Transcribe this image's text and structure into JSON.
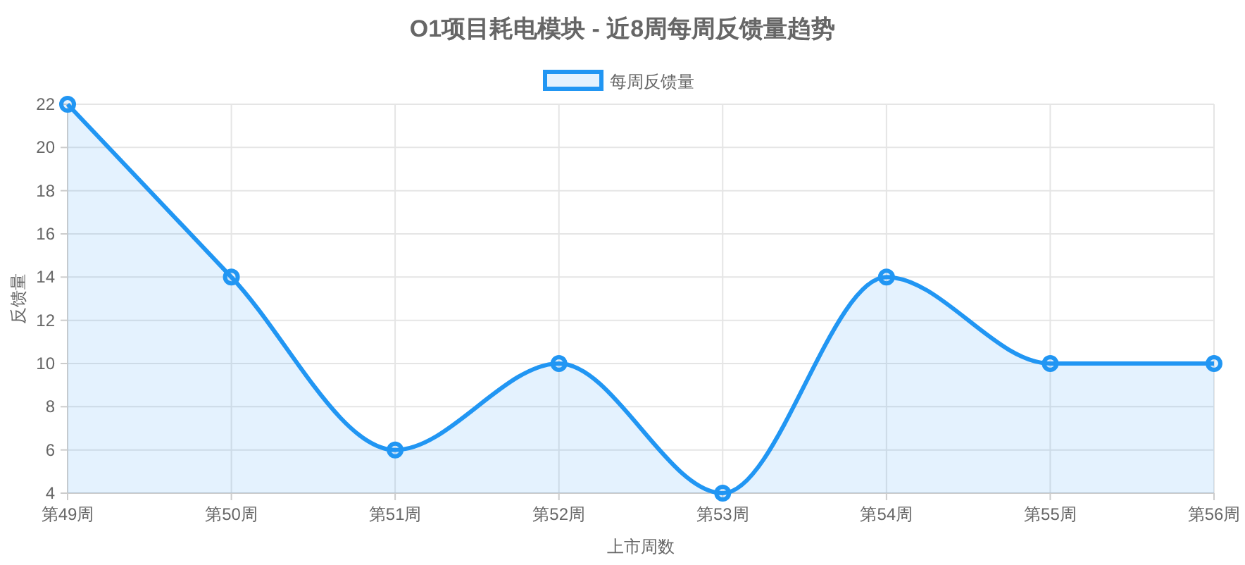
{
  "chart_data": {
    "type": "area",
    "title": "O1项目耗电模块 - 近8周每周反馈量趋势",
    "xlabel": "上市周数",
    "ylabel": "反馈量",
    "categories": [
      "第49周",
      "第50周",
      "第51周",
      "第52周",
      "第53周",
      "第54周",
      "第55周",
      "第56周"
    ],
    "series": [
      {
        "name": "每周反馈量",
        "color": "#2196f3",
        "values": [
          22,
          14,
          6,
          10,
          4,
          14,
          10,
          10
        ]
      }
    ],
    "ylim": [
      4,
      22
    ],
    "yticks": [
      4,
      6,
      8,
      10,
      12,
      14,
      16,
      18,
      20,
      22
    ],
    "grid": true,
    "legend": "top",
    "marker": "circle",
    "line_style": "solid"
  }
}
